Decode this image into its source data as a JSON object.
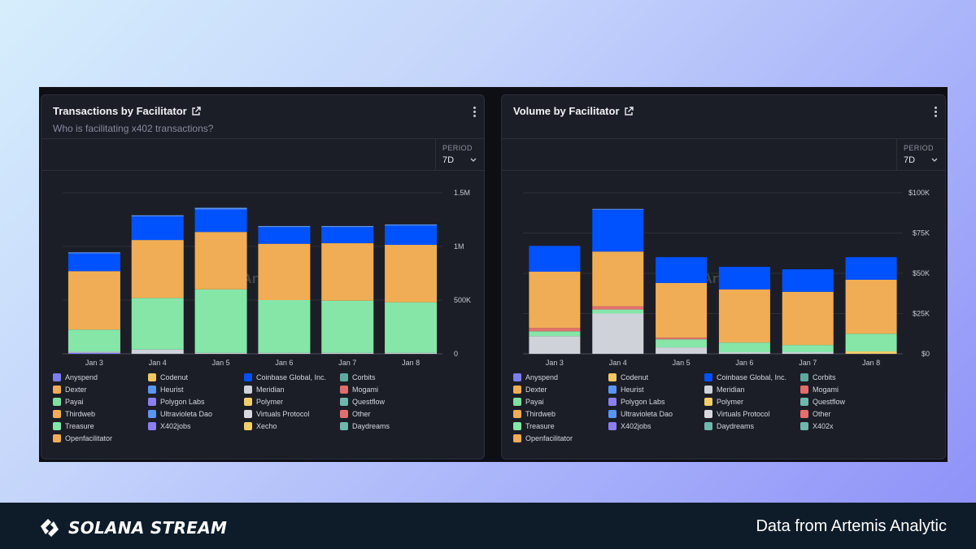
{
  "legend_colors": {
    "Anyspend": "#7d7ef0",
    "Codenut": "#f2c665",
    "Coinbase Global, Inc.": "#0052ff",
    "Corbits": "#5fa8a0",
    "Dexter": "#f0ad55",
    "Heurist": "#5b95f2",
    "Meridian": "#cfd2d9",
    "Mogami": "#e06c6c",
    "Payai": "#7fe0a0",
    "Polygon Labs": "#8c7ff0",
    "Polymer": "#f2cf6a",
    "Questflow": "#6fb8ae",
    "Thirdweb": "#f0ad55",
    "Ultravioleta Dao": "#5b95f2",
    "Virtuals Protocol": "#d8d9df",
    "Other": "#e36f6f",
    "Treasure": "#85e6a8",
    "X402jobs": "#8c7ff0",
    "Xecho": "#f2cf6a",
    "Daydreams": "#6fb8ae",
    "Openfacilitator": "#f0ad55",
    "X402x": "#6fb8ae"
  },
  "segment_colors": {
    "Other": "#e36f6f",
    "Anyspend": "#7d7ef0",
    "Openfacilitator": "#f0ad55",
    "Meridian": "#cfd2d9",
    "Treasure": "#85e6a8",
    "Payai": "#7fe0a0",
    "Coinbase Global, Inc.": "#0052ff",
    "Heurist": "#5b95f2",
    "Polymer": "#f2cf6a",
    "Dexter": "#f0ad55"
  },
  "chart_data": [
    {
      "type": "bar",
      "stacked": true,
      "title": "Transactions by Facilitator",
      "subtitle": "Who is facilitating x402 transactions?",
      "period_label": "PERIOD",
      "period_value": "7D",
      "categories": [
        "Jan 3",
        "Jan 4",
        "Jan 5",
        "Jan 6",
        "Jan 7",
        "Jan 8"
      ],
      "ylim": [
        0,
        1500000
      ],
      "yticks": [
        0,
        500000,
        1000000,
        1500000
      ],
      "ytick_labels": [
        "0",
        "500K",
        "1M",
        "1.5M"
      ],
      "series": [
        {
          "name": "Anyspend",
          "values": [
            10000,
            0,
            0,
            0,
            0,
            0
          ]
        },
        {
          "name": "Meridian",
          "values": [
            10000,
            40000,
            10000,
            10000,
            10000,
            10000
          ]
        },
        {
          "name": "Treasure",
          "values": [
            205000,
            480000,
            590000,
            490000,
            485000,
            470000
          ]
        },
        {
          "name": "Openfacilitator",
          "values": [
            545000,
            540000,
            535000,
            525000,
            535000,
            535000
          ]
        },
        {
          "name": "Coinbase Global, Inc.",
          "values": [
            165000,
            220000,
            210000,
            155000,
            150000,
            180000
          ]
        },
        {
          "name": "Heurist",
          "values": [
            10000,
            10000,
            15000,
            10000,
            10000,
            10000
          ]
        }
      ],
      "legend": [
        [
          "Anyspend",
          "Codenut",
          "Coinbase Global, Inc.",
          "Corbits"
        ],
        [
          "Dexter",
          "Heurist",
          "Meridian",
          "Mogami"
        ],
        [
          "Payai",
          "Polygon Labs",
          "Polymer",
          "Questflow"
        ],
        [
          "Thirdweb",
          "Ultravioleta Dao",
          "Virtuals Protocol",
          "Other"
        ],
        [
          "Treasure",
          "X402jobs",
          "Xecho",
          "Daydreams"
        ],
        [
          "Openfacilitator"
        ]
      ],
      "watermark": "Artemis"
    },
    {
      "type": "bar",
      "stacked": true,
      "title": "Volume by Facilitator",
      "period_label": "PERIOD",
      "period_value": "7D",
      "categories": [
        "Jan 3",
        "Jan 4",
        "Jan 5",
        "Jan 6",
        "Jan 7",
        "Jan 8"
      ],
      "ylim": [
        0,
        100000
      ],
      "yticks": [
        0,
        25000,
        50000,
        75000,
        100000
      ],
      "ytick_labels": [
        "$0",
        "$25K",
        "$50K",
        "$75K",
        "$100K"
      ],
      "series": [
        {
          "name": "Meridian",
          "values": [
            11000,
            25000,
            4000,
            1000,
            1000,
            0
          ]
        },
        {
          "name": "Polymer",
          "values": [
            0,
            0,
            0,
            0,
            0,
            1500
          ]
        },
        {
          "name": "Treasure",
          "values": [
            3000,
            2500,
            5000,
            6000,
            4500,
            11000
          ]
        },
        {
          "name": "Other",
          "values": [
            2000,
            2000,
            1000,
            0,
            0,
            0
          ]
        },
        {
          "name": "Dexter",
          "values": [
            35000,
            34000,
            34000,
            33000,
            33000,
            33500
          ]
        },
        {
          "name": "Coinbase Global, Inc.",
          "values": [
            16000,
            26000,
            16000,
            14000,
            14000,
            14000
          ]
        },
        {
          "name": "Heurist",
          "values": [
            0,
            500,
            0,
            0,
            0,
            0
          ]
        }
      ],
      "legend": [
        [
          "Anyspend",
          "Codenut",
          "Coinbase Global, Inc.",
          "Corbits"
        ],
        [
          "Dexter",
          "Heurist",
          "Meridian",
          "Mogami"
        ],
        [
          "Payai",
          "Polygon Labs",
          "Polymer",
          "Questflow"
        ],
        [
          "Thirdweb",
          "Ultravioleta Dao",
          "Virtuals Protocol",
          "Other"
        ],
        [
          "Treasure",
          "X402jobs",
          "Daydreams",
          "X402x"
        ],
        [
          "Openfacilitator"
        ]
      ],
      "watermark": "Artemis"
    }
  ],
  "footer": {
    "brand": "SOLANA STREAM",
    "source": "Data from Artemis Analytic"
  }
}
